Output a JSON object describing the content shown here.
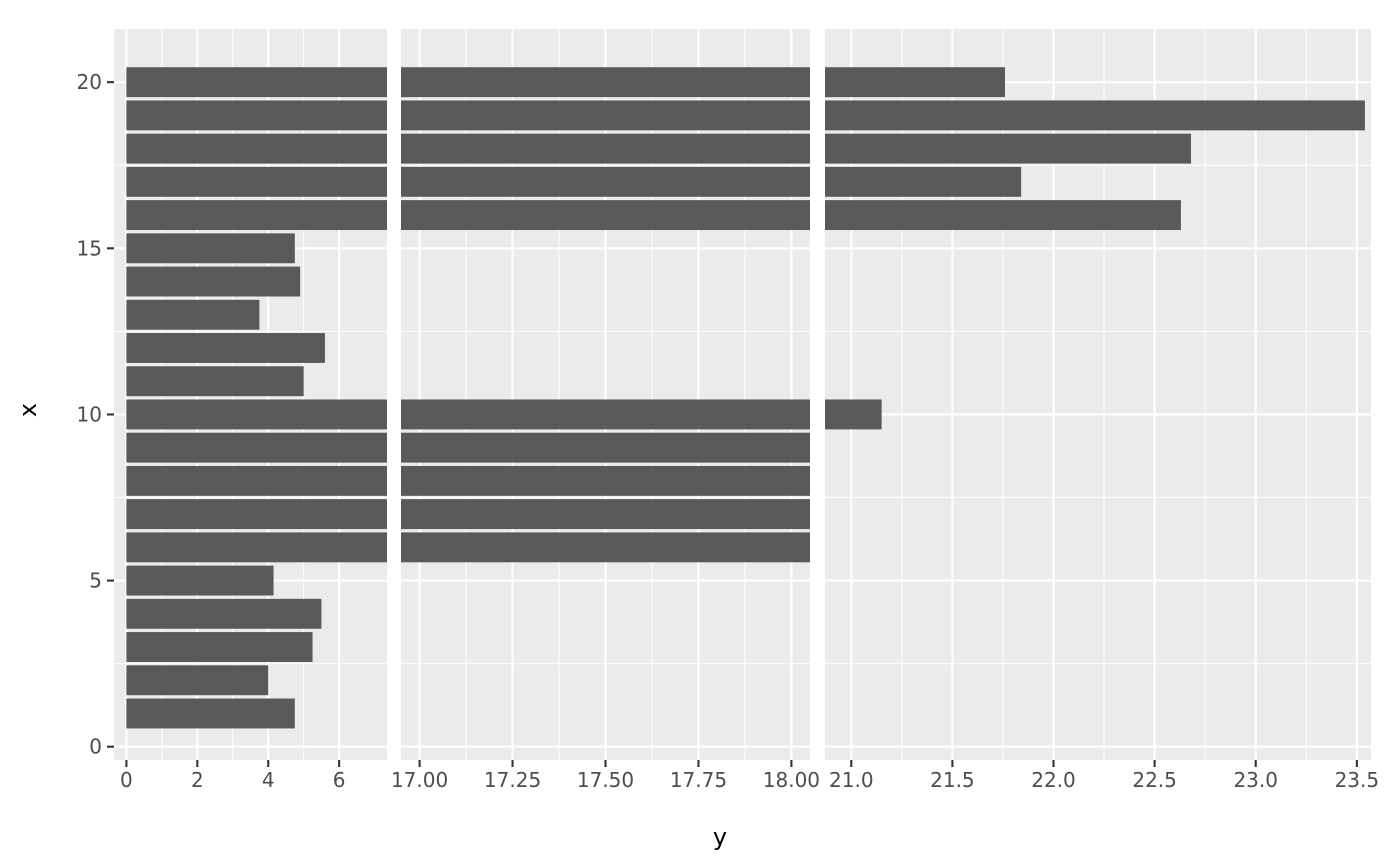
{
  "chart_data": {
    "type": "bar",
    "orientation": "horizontal",
    "variant": "broken-axis",
    "xlabel": "y",
    "ylabel": "x",
    "x": [
      1,
      2,
      3,
      4,
      5,
      6,
      7,
      8,
      9,
      10,
      11,
      12,
      13,
      14,
      15,
      16,
      17,
      18,
      19,
      20
    ],
    "values": [
      4.75,
      4.0,
      5.25,
      5.5,
      4.15,
      18.05,
      18.05,
      18.05,
      18.05,
      21.15,
      5.0,
      5.6,
      3.75,
      4.9,
      4.75,
      22.63,
      21.84,
      22.68,
      23.54,
      21.76
    ],
    "category_axis": {
      "range": [
        -0.4,
        21.6
      ],
      "ticks": [
        0,
        5,
        10,
        15,
        20
      ]
    },
    "bar_width": 0.9,
    "segments": [
      {
        "range": [
          -0.35,
          7.35
        ],
        "ticks": [
          0,
          2,
          4,
          6
        ],
        "tick_labels": [
          "0",
          "2",
          "4",
          "6"
        ]
      },
      {
        "range": [
          16.95,
          18.05
        ],
        "ticks": [
          17.0,
          17.25,
          17.5,
          17.75,
          18.0
        ],
        "tick_labels": [
          "17.00",
          "17.25",
          "17.50",
          "17.75",
          "18.00"
        ]
      },
      {
        "range": [
          20.87,
          23.57
        ],
        "ticks": [
          21.0,
          21.5,
          22.0,
          22.5,
          23.0,
          23.5
        ],
        "tick_labels": [
          "21.0",
          "21.5",
          "22.0",
          "22.5",
          "23.0",
          "23.5"
        ]
      }
    ],
    "grid": true,
    "colors": {
      "bar": "#595959",
      "panel": "#ebebeb",
      "grid": "#ffffff"
    }
  }
}
